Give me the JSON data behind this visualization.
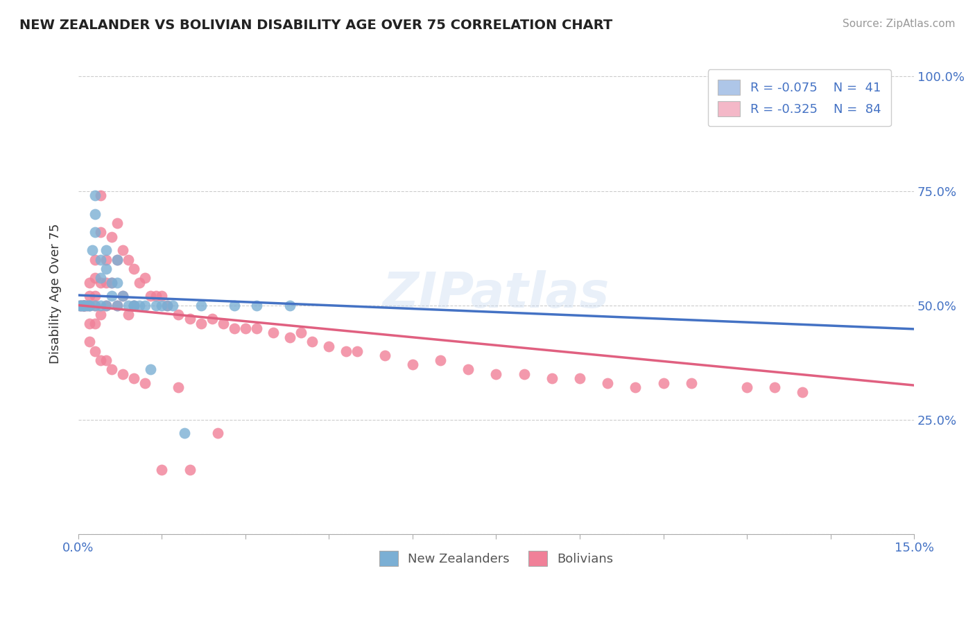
{
  "title": "NEW ZEALANDER VS BOLIVIAN DISABILITY AGE OVER 75 CORRELATION CHART",
  "source": "Source: ZipAtlas.com",
  "ylabel": "Disability Age Over 75",
  "xlabel": "",
  "xlim": [
    0.0,
    0.15
  ],
  "ylim": [
    0.0,
    1.05
  ],
  "ytick_positions": [
    0.0,
    0.25,
    0.5,
    0.75,
    1.0
  ],
  "ytick_labels": [
    "",
    "25.0%",
    "50.0%",
    "75.0%",
    "100.0%"
  ],
  "xtick_labels": [
    "0.0%",
    "",
    "",
    "",
    "",
    "",
    "",
    "",
    "",
    "",
    "15.0%"
  ],
  "legend_nz": {
    "R": "-0.075",
    "N": "41",
    "color": "#aec6e8"
  },
  "legend_bo": {
    "R": "-0.325",
    "N": "84",
    "color": "#f4b8c8"
  },
  "nz_color": "#7bafd4",
  "bo_color": "#f08098",
  "nz_line_color": "#4472c4",
  "bo_line_color": "#e06080",
  "watermark": "ZIPatlas",
  "background_color": "#ffffff",
  "nz_line_x0": 0.0,
  "nz_line_y0": 0.522,
  "nz_line_x1": 0.15,
  "nz_line_y1": 0.448,
  "bo_line_x0": 0.0,
  "bo_line_y0": 0.5,
  "bo_line_x1": 0.15,
  "bo_line_y1": 0.325,
  "nz_points_x": [
    0.0003,
    0.0005,
    0.0007,
    0.001,
    0.001,
    0.001,
    0.0015,
    0.002,
    0.002,
    0.0025,
    0.003,
    0.003,
    0.003,
    0.003,
    0.004,
    0.004,
    0.004,
    0.005,
    0.005,
    0.005,
    0.006,
    0.006,
    0.007,
    0.007,
    0.007,
    0.008,
    0.009,
    0.01,
    0.01,
    0.011,
    0.012,
    0.013,
    0.014,
    0.015,
    0.016,
    0.017,
    0.019,
    0.022,
    0.028,
    0.032,
    0.038
  ],
  "nz_points_y": [
    0.5,
    0.5,
    0.5,
    0.5,
    0.5,
    0.5,
    0.5,
    0.5,
    0.5,
    0.62,
    0.66,
    0.7,
    0.74,
    0.5,
    0.6,
    0.56,
    0.5,
    0.62,
    0.58,
    0.5,
    0.55,
    0.52,
    0.6,
    0.55,
    0.5,
    0.52,
    0.5,
    0.5,
    0.5,
    0.5,
    0.5,
    0.36,
    0.5,
    0.5,
    0.5,
    0.5,
    0.22,
    0.5,
    0.5,
    0.5,
    0.5
  ],
  "bo_points_x": [
    0.0003,
    0.0005,
    0.001,
    0.001,
    0.001,
    0.001,
    0.001,
    0.001,
    0.0015,
    0.002,
    0.002,
    0.002,
    0.002,
    0.003,
    0.003,
    0.003,
    0.003,
    0.003,
    0.004,
    0.004,
    0.004,
    0.004,
    0.005,
    0.005,
    0.005,
    0.006,
    0.006,
    0.007,
    0.007,
    0.007,
    0.008,
    0.008,
    0.009,
    0.009,
    0.01,
    0.01,
    0.011,
    0.012,
    0.013,
    0.014,
    0.015,
    0.016,
    0.018,
    0.02,
    0.022,
    0.024,
    0.026,
    0.028,
    0.03,
    0.032,
    0.035,
    0.038,
    0.04,
    0.042,
    0.045,
    0.048,
    0.05,
    0.055,
    0.06,
    0.065,
    0.07,
    0.075,
    0.08,
    0.085,
    0.09,
    0.095,
    0.1,
    0.105,
    0.11,
    0.12,
    0.125,
    0.13,
    0.002,
    0.003,
    0.004,
    0.005,
    0.006,
    0.008,
    0.01,
    0.012,
    0.015,
    0.018,
    0.02,
    0.025
  ],
  "bo_points_y": [
    0.5,
    0.5,
    0.5,
    0.5,
    0.5,
    0.5,
    0.5,
    0.5,
    0.5,
    0.55,
    0.52,
    0.5,
    0.46,
    0.6,
    0.56,
    0.52,
    0.5,
    0.46,
    0.74,
    0.66,
    0.55,
    0.48,
    0.6,
    0.55,
    0.5,
    0.65,
    0.55,
    0.68,
    0.6,
    0.5,
    0.62,
    0.52,
    0.6,
    0.48,
    0.58,
    0.5,
    0.55,
    0.56,
    0.52,
    0.52,
    0.52,
    0.5,
    0.48,
    0.47,
    0.46,
    0.47,
    0.46,
    0.45,
    0.45,
    0.45,
    0.44,
    0.43,
    0.44,
    0.42,
    0.41,
    0.4,
    0.4,
    0.39,
    0.37,
    0.38,
    0.36,
    0.35,
    0.35,
    0.34,
    0.34,
    0.33,
    0.32,
    0.33,
    0.33,
    0.32,
    0.32,
    0.31,
    0.42,
    0.4,
    0.38,
    0.38,
    0.36,
    0.35,
    0.34,
    0.33,
    0.14,
    0.32,
    0.14,
    0.22
  ]
}
